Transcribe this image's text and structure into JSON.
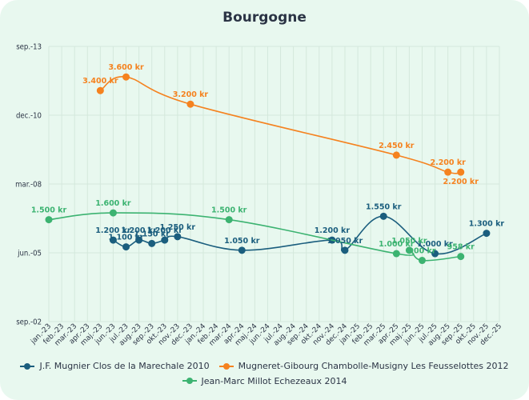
{
  "chart_data": {
    "type": "line",
    "title": "Bourgogne",
    "xlabel": "",
    "ylabel": "",
    "categories": [
      "jan.-23",
      "feb.-23",
      "mar.-23",
      "apr.-23",
      "maj.-23",
      "jun.-23",
      "jul.-23",
      "aug.-23",
      "sep.-23",
      "okt.-23",
      "nov.-23",
      "dec.-23",
      "jan.-24",
      "feb.-24",
      "mar.-24",
      "apr.-24",
      "maj.-24",
      "jun.-24",
      "jul.-24",
      "aug.-24",
      "sep.-24",
      "okt.-24",
      "nov.-24",
      "dec.-24",
      "jan.-25",
      "feb.-25",
      "mar.-25",
      "apr.-25",
      "maj.-25",
      "jun.-25",
      "jul.-25",
      "aug.-25",
      "sep.-25",
      "okt.-25",
      "nov.-25",
      "dec.-25"
    ],
    "y_tick_labels": [
      "sep.-02",
      "jun.-05",
      "mar.-08",
      "dec.-10",
      "sep.-13"
    ],
    "ylim": [
      0,
      4050
    ],
    "grid": true,
    "legend_position": "bottom",
    "series": [
      {
        "name": "J.F. Mugnier Clos de la Marechale 2010",
        "color": "#1b5e7e",
        "points": [
          {
            "x": "jun.-23",
            "y": 1200,
            "label": "1.200 kr"
          },
          {
            "x": "jul.-23",
            "y": 1100,
            "label": "1.100 kr"
          },
          {
            "x": "aug.-23",
            "y": 1200,
            "label": "1.200 kr"
          },
          {
            "x": "sep.-23",
            "y": 1150,
            "label": "1.150 kr"
          },
          {
            "x": "okt.-23",
            "y": 1200,
            "label": "1.200 kr"
          },
          {
            "x": "nov.-23",
            "y": 1250,
            "label": "1.250 kr"
          },
          {
            "x": "apr.-24",
            "y": 1050,
            "label": "1.050 kr"
          },
          {
            "x": "nov.-24",
            "y": 1200,
            "label": "1.200 kr"
          },
          {
            "x": "dec.-24",
            "y": 1050,
            "label": "1.050 kr"
          },
          {
            "x": "mar.-25",
            "y": 1550,
            "label": "1.550 kr"
          },
          {
            "x": "jul.-25",
            "y": 1000,
            "label": "1.000 kr"
          },
          {
            "x": "nov.-25",
            "y": 1300,
            "label": "1.300 kr"
          }
        ]
      },
      {
        "name": "Mugneret-Gibourg Chambolle-Musigny Les Feusselottes 2012",
        "color": "#f5821f",
        "points": [
          {
            "x": "maj.-23",
            "y": 3400,
            "label": "3.400 kr"
          },
          {
            "x": "jul.-23",
            "y": 3600,
            "label": "3.600 kr"
          },
          {
            "x": "dec.-23",
            "y": 3200,
            "label": "3.200 kr"
          },
          {
            "x": "apr.-25",
            "y": 2450,
            "label": "2.450 kr"
          },
          {
            "x": "aug.-25",
            "y": 2200,
            "label": "2.200 kr"
          },
          {
            "x": "sep.-25",
            "y": 2200,
            "label": "2.200 kr"
          }
        ]
      },
      {
        "name": "Jean-Marc Millot Echezeaux 2014",
        "color": "#3cb371",
        "points": [
          {
            "x": "jan.-23",
            "y": 1500,
            "label": "1.500 kr"
          },
          {
            "x": "jun.-23",
            "y": 1600,
            "label": "1.600 kr"
          },
          {
            "x": "mar.-24",
            "y": 1500,
            "label": "1.500 kr"
          },
          {
            "x": "apr.-25",
            "y": 1000,
            "label": "1.000 kr"
          },
          {
            "x": "maj.-25",
            "y": 1050,
            "label": "1.050 kr"
          },
          {
            "x": "jun.-25",
            "y": 900,
            "label": "900 kr"
          },
          {
            "x": "sep.-25",
            "y": 958,
            "label": "958 kr"
          }
        ]
      }
    ]
  },
  "page": {
    "title": "Bourgogne",
    "text_color": "#2b3445",
    "background": "#e8f8ef"
  }
}
